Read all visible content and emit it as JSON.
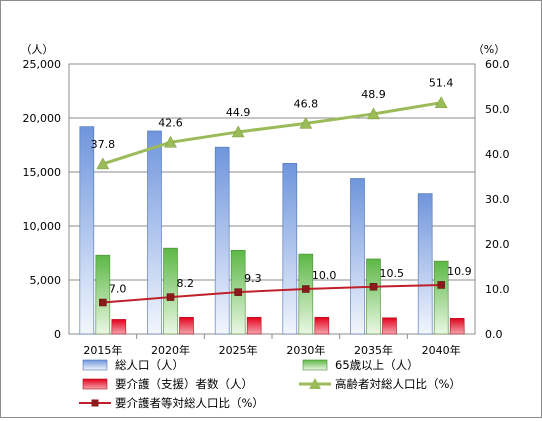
{
  "chart_data": {
    "type": "bar",
    "title": "",
    "categories": [
      "2015年",
      "2020年",
      "2025年",
      "2030年",
      "2035年",
      "2040年"
    ],
    "y_left": {
      "label": "（人）",
      "ylim": [
        0,
        25000
      ],
      "ticks": [
        "0",
        "5,000",
        "10,000",
        "15,000",
        "20,000",
        "25,000"
      ]
    },
    "y_right": {
      "label": "（%）",
      "ylim": [
        0,
        60
      ],
      "ticks": [
        "0.0",
        "10.0",
        "20.0",
        "30.0",
        "40.0",
        "50.0",
        "60.0"
      ]
    },
    "grid": true,
    "legend_position": "bottom",
    "bar_series": [
      {
        "name": "総人口（人）",
        "color": "#9db8e8",
        "values": [
          19200,
          18800,
          17300,
          15800,
          14400,
          13000
        ]
      },
      {
        "name": "65歳以上（人）",
        "color": "#8fd17a",
        "values": [
          7300,
          7950,
          7750,
          7400,
          6950,
          6750
        ]
      },
      {
        "name": "要介護（支援）者数（人）",
        "color": "#e8253a",
        "values": [
          1350,
          1550,
          1550,
          1550,
          1500,
          1450
        ]
      }
    ],
    "line_series": [
      {
        "name": "高齢者対総人口比（%）",
        "color": "#9bbb59",
        "marker": "triangle",
        "values": [
          37.8,
          42.6,
          44.9,
          46.8,
          48.9,
          51.4
        ],
        "labels": [
          "37.8",
          "42.6",
          "44.9",
          "46.8",
          "48.9",
          "51.4"
        ]
      },
      {
        "name": "要介護者等対総人口比（%）",
        "color": "#c0202a",
        "marker": "square",
        "values": [
          7.0,
          8.2,
          9.3,
          10.0,
          10.5,
          10.9
        ],
        "labels": [
          "7.0",
          "8.2",
          "9.3",
          "10.0",
          "10.5",
          "10.9"
        ]
      }
    ]
  }
}
